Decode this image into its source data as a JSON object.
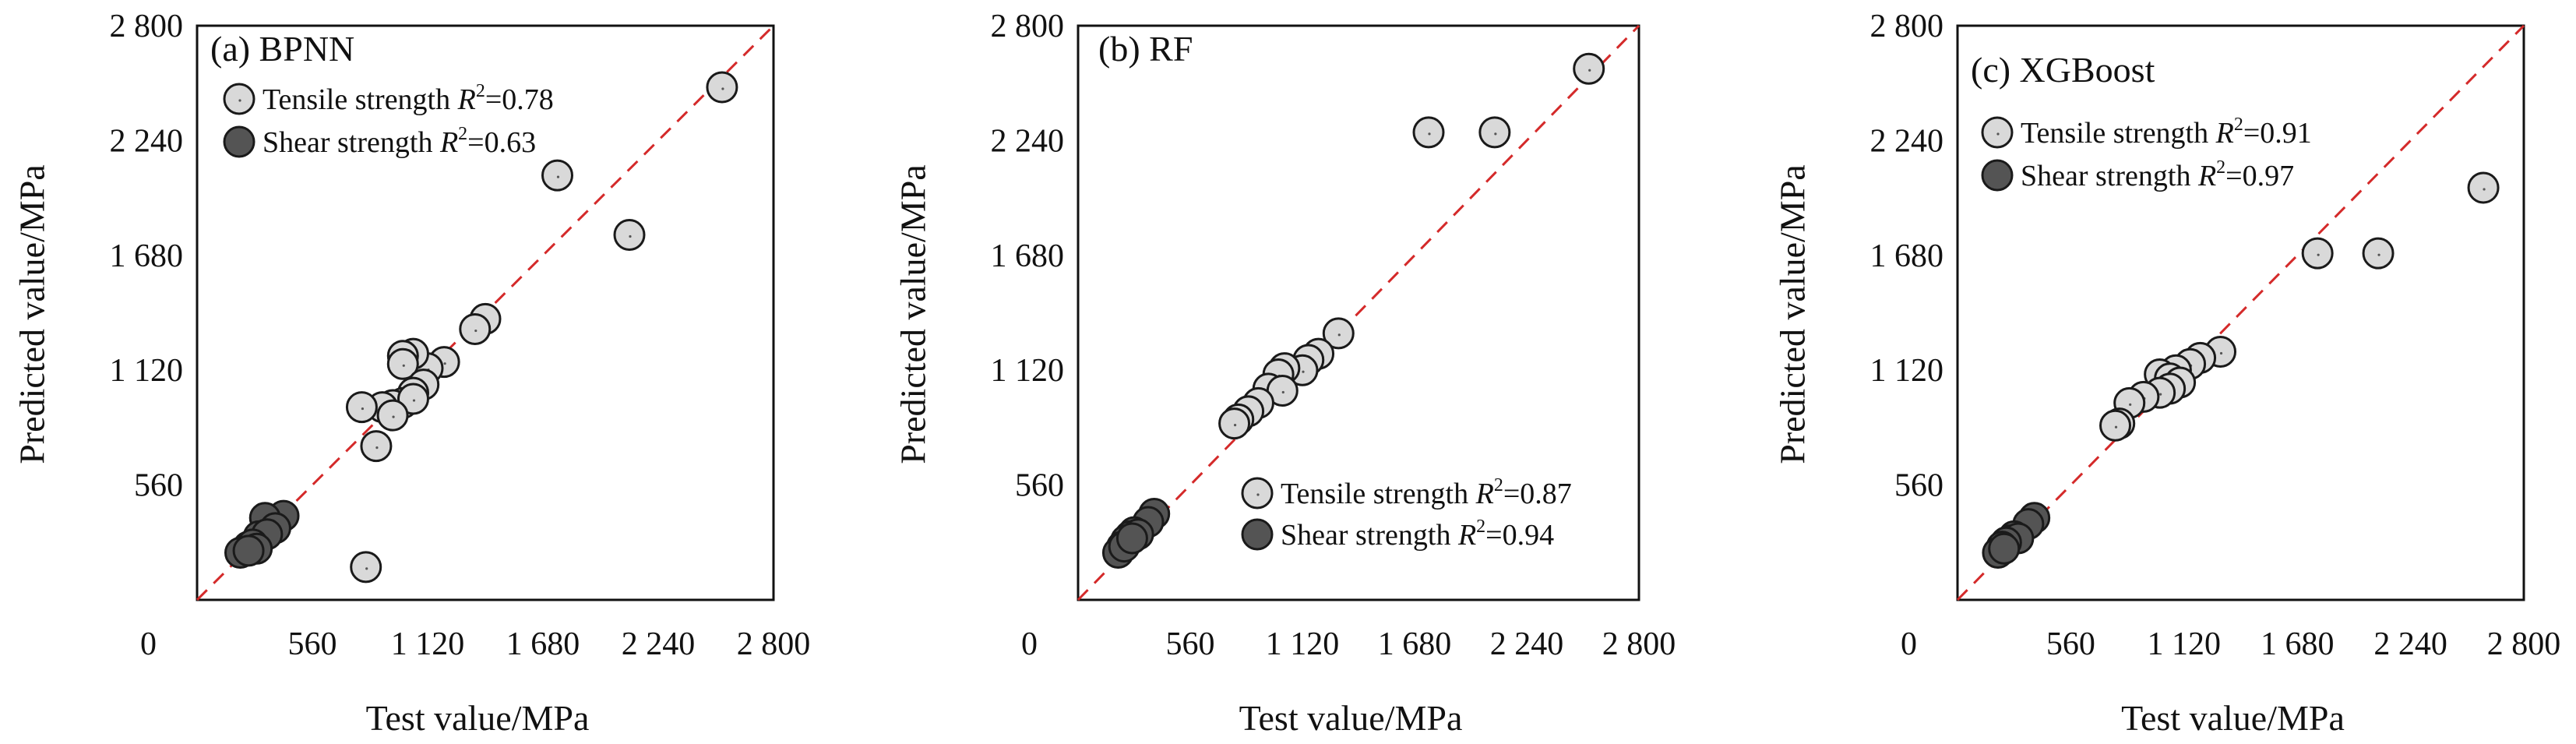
{
  "colors": {
    "tensile_fill": "#d9d9d9",
    "shear_fill": "#545454",
    "diagonal": "#d42a2a",
    "frame": "#111111"
  },
  "chart_data": [
    {
      "type": "scatter",
      "title": "(a) BPNN",
      "xlabel": "Test value/MPa",
      "ylabel": "Predicted value/MPa",
      "xlim": [
        0,
        2800
      ],
      "ylim": [
        0,
        2800
      ],
      "xticks": [
        "0",
        "560",
        "1 120",
        "1 680",
        "2 240",
        "2 800"
      ],
      "yticks": [
        "560",
        "1 120",
        "1 680",
        "2 240",
        "2 800"
      ],
      "tick_values": [
        0,
        560,
        1120,
        1680,
        2240,
        2800
      ],
      "reference_line": "y = x",
      "legend_position": "top-left",
      "series": [
        {
          "name": "Tensile strength",
          "r2_label": "R",
          "r2_value": "=0.78",
          "points": [
            [
              2550,
              2500
            ],
            [
              1750,
              2070
            ],
            [
              2100,
              1780
            ],
            [
              1400,
              1370
            ],
            [
              1350,
              1320
            ],
            [
              1200,
              1160
            ],
            [
              1120,
              1130
            ],
            [
              1050,
              1200
            ],
            [
              1000,
              1190
            ],
            [
              1000,
              1150
            ],
            [
              1100,
              1050
            ],
            [
              1050,
              1010
            ],
            [
              1000,
              960
            ],
            [
              950,
              950
            ],
            [
              900,
              940
            ],
            [
              800,
              940
            ],
            [
              1050,
              980
            ],
            [
              950,
              900
            ],
            [
              870,
              750
            ],
            [
              820,
              160
            ]
          ]
        },
        {
          "name": "Shear strength",
          "r2_label": "R",
          "r2_value": "=0.63",
          "points": [
            [
              420,
              410
            ],
            [
              330,
              400
            ],
            [
              380,
              350
            ],
            [
              300,
              310
            ],
            [
              340,
              320
            ],
            [
              250,
              260
            ],
            [
              230,
              240
            ],
            [
              270,
              270
            ],
            [
              290,
              250
            ],
            [
              210,
              230
            ],
            [
              250,
              240
            ]
          ]
        }
      ]
    },
    {
      "type": "scatter",
      "title": "(b) RF",
      "xlabel": "Test value/MPa",
      "ylabel": "Predicted value/MPa",
      "xlim": [
        0,
        2800
      ],
      "ylim": [
        0,
        2800
      ],
      "xticks": [
        "0",
        "560",
        "1 120",
        "1 680",
        "2 240",
        "2 800"
      ],
      "yticks": [
        "560",
        "1 120",
        "1 680",
        "2 240",
        "2 800"
      ],
      "tick_values": [
        0,
        560,
        1120,
        1680,
        2240,
        2800
      ],
      "reference_line": "y = x",
      "legend_position": "bottom-right",
      "series": [
        {
          "name": "Tensile strength",
          "r2_label": "R",
          "r2_value": "=0.87",
          "points": [
            [
              2550,
              2590
            ],
            [
              1750,
              2280
            ],
            [
              2080,
              2280
            ],
            [
              1300,
              1300
            ],
            [
              1200,
              1200
            ],
            [
              1150,
              1170
            ],
            [
              1120,
              1120
            ],
            [
              1030,
              1130
            ],
            [
              1000,
              1100
            ],
            [
              950,
              1030
            ],
            [
              1020,
              1020
            ],
            [
              900,
              960
            ],
            [
              850,
              920
            ],
            [
              800,
              880
            ],
            [
              780,
              860
            ]
          ]
        },
        {
          "name": "Shear strength",
          "r2_label": "R",
          "r2_value": "=0.94",
          "points": [
            [
              380,
              420
            ],
            [
              350,
              380
            ],
            [
              280,
              330
            ],
            [
              260,
              310
            ],
            [
              300,
              320
            ],
            [
              240,
              290
            ],
            [
              220,
              260
            ],
            [
              200,
              230
            ],
            [
              230,
              260
            ],
            [
              270,
              300
            ]
          ]
        }
      ]
    },
    {
      "type": "scatter",
      "title": "(c) XGBoost",
      "xlabel": "Test value/MPa",
      "ylabel": "Predicted value/MPa",
      "xlim": [
        0,
        2800
      ],
      "ylim": [
        0,
        2800
      ],
      "xticks": [
        "0",
        "560",
        "1 120",
        "1 680",
        "2 240",
        "2 800"
      ],
      "yticks": [
        "560",
        "1 120",
        "1 680",
        "2 240",
        "2 800"
      ],
      "tick_values": [
        0,
        560,
        1120,
        1680,
        2240,
        2800
      ],
      "reference_line": "y = x",
      "legend_position": "top-left",
      "series": [
        {
          "name": "Tensile strength",
          "r2_label": "R",
          "r2_value": "=0.91",
          "points": [
            [
              2600,
              2010
            ],
            [
              2080,
              1690
            ],
            [
              1780,
              1690
            ],
            [
              1300,
              1210
            ],
            [
              1200,
              1180
            ],
            [
              1150,
              1150
            ],
            [
              1080,
              1120
            ],
            [
              1000,
              1100
            ],
            [
              1050,
              1080
            ],
            [
              1100,
              1060
            ],
            [
              1050,
              1030
            ],
            [
              1000,
              1010
            ],
            [
              920,
              990
            ],
            [
              850,
              960
            ],
            [
              800,
              860
            ],
            [
              780,
              850
            ]
          ]
        },
        {
          "name": "Shear strength",
          "r2_label": "R",
          "r2_value": "=0.97",
          "points": [
            [
              380,
              400
            ],
            [
              350,
              370
            ],
            [
              280,
              310
            ],
            [
              260,
              290
            ],
            [
              300,
              300
            ],
            [
              240,
              280
            ],
            [
              220,
              260
            ],
            [
              200,
              230
            ],
            [
              230,
              250
            ]
          ]
        }
      ]
    }
  ]
}
